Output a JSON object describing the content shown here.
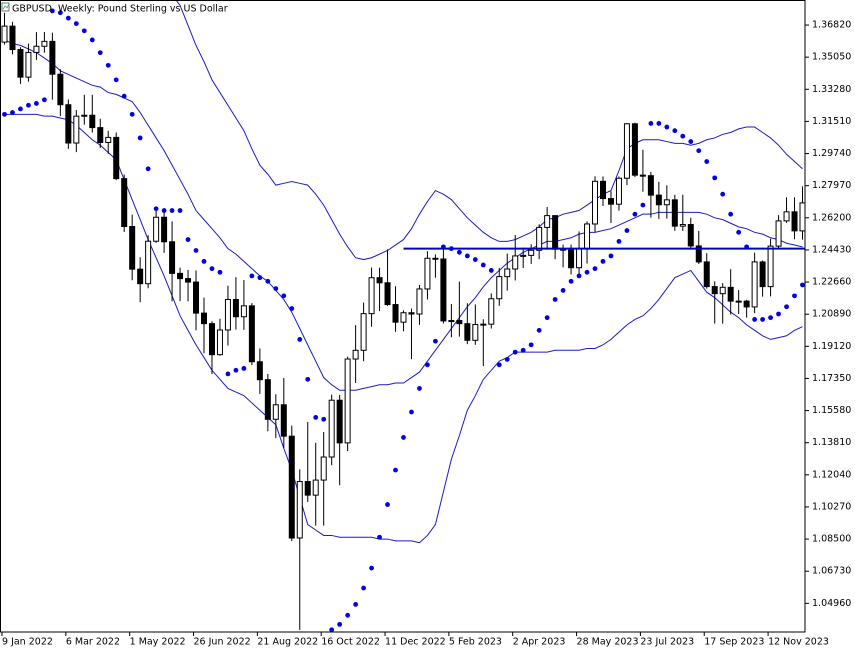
{
  "chart_data": {
    "type": "candlestick",
    "title": "GBPUSD, Weekly:  Pound Sterling vs US Dollar",
    "categories": [
      "9 Jan 2022",
      null,
      null,
      null,
      null,
      null,
      null,
      null,
      "6 Mar 2022",
      null,
      null,
      null,
      null,
      null,
      null,
      null,
      "1 May 2022",
      null,
      null,
      null,
      null,
      null,
      null,
      null,
      "26 Jun 2022",
      null,
      null,
      null,
      null,
      null,
      null,
      null,
      "21 Aug 2022",
      null,
      null,
      null,
      null,
      null,
      null,
      null,
      "16 Oct 2022",
      null,
      null,
      null,
      null,
      null,
      null,
      null,
      "11 Dec 2022",
      null,
      null,
      null,
      null,
      null,
      null,
      null,
      "5 Feb 2023",
      null,
      null,
      null,
      null,
      null,
      null,
      null,
      "2 Apr 2023",
      null,
      null,
      null,
      null,
      null,
      null,
      null,
      "28 May 2023",
      null,
      null,
      null,
      null,
      null,
      null,
      null,
      "23 Jul 2023",
      null,
      null,
      null,
      null,
      null,
      null,
      null,
      "17 Sep 2023",
      null,
      null,
      null,
      null,
      null,
      null,
      null,
      "12 Nov 2023",
      null,
      null,
      null,
      null
    ],
    "open": [
      1.3588,
      1.3676,
      1.3547,
      1.3395,
      1.3531,
      1.3565,
      1.3592,
      1.3411,
      1.3243,
      1.3032,
      1.318,
      1.3185,
      1.3117,
      1.3035,
      1.3063,
      1.2836,
      1.2572,
      1.2337,
      1.2257,
      1.2491,
      1.2623,
      1.2488,
      1.2314,
      1.2285,
      1.2266,
      1.2095,
      1.2037,
      1.1866,
      1.2002,
      1.217,
      1.2075,
      1.2135,
      1.1827,
      1.1728,
      1.151,
      1.159,
      1.1417,
      1.0856,
      1.1167,
      1.1092,
      1.1175,
      1.1302,
      1.1615,
      1.138,
      1.1842,
      1.189,
      1.2092,
      1.229,
      1.2262,
      1.2142,
      1.2045,
      1.2097,
      1.209,
      1.2228,
      1.2397,
      1.2393,
      1.2052,
      1.2054,
      1.2037,
      1.1945,
      1.2032,
      1.2034,
      1.2174,
      1.2296,
      1.2338,
      1.241,
      1.2413,
      1.2441,
      1.2567,
      1.2632,
      1.2447,
      1.2442,
      1.2345,
      1.2448,
      1.2586,
      1.2821,
      1.2726,
      1.2695,
      1.2838,
      1.3138,
      1.2855,
      1.2852,
      1.2745,
      1.2692,
      1.2719,
      1.2574,
      1.2583,
      1.2465,
      1.2377,
      1.2241,
      1.2202,
      1.2237,
      1.2161,
      1.2161,
      1.2129,
      1.2377,
      1.2241,
      1.2464,
      1.2603,
      1.2653,
      1.2548
    ],
    "high": [
      1.3749,
      1.37,
      1.356,
      1.358,
      1.3643,
      1.3644,
      1.364,
      1.3439,
      1.3272,
      1.3214,
      1.3298,
      1.3298,
      1.3166,
      1.3099,
      1.309,
      1.2858,
      1.2638,
      1.2403,
      1.2524,
      1.2666,
      1.2666,
      1.26,
      1.2345,
      1.2333,
      1.233,
      1.218,
      1.205,
      1.2064,
      1.2246,
      1.2293,
      1.2277,
      1.215,
      1.19,
      1.176,
      1.1648,
      1.1738,
      1.1475,
      1.1234,
      1.1495,
      1.138,
      1.144,
      1.1646,
      1.1644,
      1.1855,
      1.2029,
      1.2153,
      1.2346,
      1.2345,
      1.2446,
      1.2243,
      1.211,
      1.212,
      1.225,
      1.2436,
      1.2418,
      1.2448,
      1.2145,
      1.2269,
      1.2149,
      1.2143,
      1.2061,
      1.2204,
      1.2344,
      1.2423,
      1.2525,
      1.2456,
      1.2474,
      1.2584,
      1.268,
      1.2634,
      1.2472,
      1.2472,
      1.2545,
      1.26,
      1.2849,
      1.2848,
      1.2766,
      1.2848,
      1.3142,
      1.3144,
      1.2995,
      1.2873,
      1.2818,
      1.2799,
      1.2747,
      1.2747,
      1.262,
      1.2548,
      1.2425,
      1.227,
      1.226,
      1.2337,
      1.2222,
      1.2168,
      1.2428,
      1.2385,
      1.2505,
      1.2635,
      1.2733,
      1.2733,
      1.2793
    ],
    "low": [
      1.3575,
      1.352,
      1.3358,
      1.337,
      1.349,
      1.353,
      1.3271,
      1.318,
      1.3,
      1.2982,
      1.3133,
      1.309,
      1.3005,
      1.2973,
      1.2827,
      1.2542,
      1.2276,
      1.2155,
      1.2232,
      1.2482,
      1.2427,
      1.216,
      1.2161,
      1.216,
      1.2,
      1.1874,
      1.1759,
      1.186,
      1.1916,
      1.2004,
      1.2003,
      1.1809,
      1.165,
      1.1444,
      1.1406,
      1.1351,
      1.0839,
      1.035,
      1.1055,
      1.0924,
      1.0924,
      1.1257,
      1.1147,
      1.1335,
      1.171,
      1.183,
      1.202,
      1.2106,
      1.2135,
      1.1992,
      1.1995,
      1.1841,
      1.203,
      1.217,
      1.229,
      1.2038,
      1.1962,
      1.1965,
      1.1924,
      1.192,
      1.1803,
      1.201,
      1.2135,
      1.2219,
      1.2275,
      1.2343,
      1.2366,
      1.2392,
      1.2444,
      1.2392,
      1.2347,
      1.2308,
      1.231,
      1.2368,
      1.2541,
      1.2685,
      1.2591,
      1.266,
      1.28,
      1.2845,
      1.2764,
      1.2621,
      1.2614,
      1.2616,
      1.2548,
      1.2548,
      1.2445,
      1.2366,
      1.223,
      1.2037,
      1.2037,
      1.2087,
      1.209,
      1.207,
      1.2095,
      1.2186,
      1.2187,
      1.245,
      1.2592,
      1.2502,
      1.25
    ],
    "close": [
      1.3676,
      1.3547,
      1.3395,
      1.3531,
      1.3565,
      1.3592,
      1.3411,
      1.3243,
      1.3032,
      1.318,
      1.3185,
      1.3117,
      1.3035,
      1.3063,
      1.2836,
      1.2572,
      1.2337,
      1.2257,
      1.2491,
      1.2623,
      1.2488,
      1.2314,
      1.2285,
      1.2266,
      1.2095,
      1.2037,
      1.1866,
      1.2002,
      1.217,
      1.2075,
      1.2135,
      1.1827,
      1.1728,
      1.151,
      1.159,
      1.1417,
      1.0856,
      1.1167,
      1.1092,
      1.1175,
      1.1302,
      1.1615,
      1.138,
      1.1842,
      1.189,
      1.2092,
      1.229,
      1.2262,
      1.2142,
      1.2045,
      1.2097,
      1.209,
      1.2228,
      1.2397,
      1.2393,
      1.2052,
      1.2054,
      1.2037,
      1.1945,
      1.2032,
      1.2034,
      1.2174,
      1.2296,
      1.2338,
      1.241,
      1.2413,
      1.2441,
      1.2567,
      1.2632,
      1.2447,
      1.2442,
      1.2345,
      1.2448,
      1.2586,
      1.2821,
      1.2726,
      1.2695,
      1.2838,
      1.3138,
      1.2855,
      1.2852,
      1.2745,
      1.2692,
      1.2719,
      1.2574,
      1.2583,
      1.2465,
      1.2377,
      1.2241,
      1.2202,
      1.2237,
      1.2161,
      1.2161,
      1.2129,
      1.2377,
      1.2241,
      1.2464,
      1.2603,
      1.2653,
      1.2548,
      1.2702
    ],
    "up_color": "#ffffff",
    "down_color": "#000000",
    "bands": {
      "color": "#1a1acc",
      "upper": [
        1.404,
        1.405,
        1.405,
        1.406,
        1.407,
        1.407,
        1.408,
        1.409,
        1.41,
        1.41,
        1.411,
        1.412,
        1.412,
        1.412,
        1.411,
        1.41,
        1.41,
        1.405,
        1.401,
        1.396,
        1.39,
        1.385,
        1.379,
        1.368,
        1.357,
        1.348,
        1.338,
        1.331,
        1.324,
        1.317,
        1.31,
        1.3,
        1.291,
        1.286,
        1.28,
        1.281,
        1.282,
        1.281,
        1.28,
        1.275,
        1.269,
        1.261,
        1.253,
        1.246,
        1.24,
        1.239,
        1.24,
        1.242,
        1.244,
        1.247,
        1.25,
        1.256,
        1.264,
        1.271,
        1.277,
        1.275,
        1.272,
        1.267,
        1.262,
        1.258,
        1.254,
        1.251,
        1.249,
        1.249,
        1.25,
        1.252,
        1.254,
        1.257,
        1.261,
        1.262,
        1.264,
        1.265,
        1.266,
        1.269,
        1.272,
        1.275,
        1.277,
        1.288,
        1.3,
        1.303,
        1.305,
        1.305,
        1.305,
        1.304,
        1.303,
        1.303,
        1.302,
        1.303,
        1.305,
        1.306,
        1.308,
        1.309,
        1.311,
        1.312,
        1.312,
        1.309,
        1.306,
        1.302,
        1.297,
        1.293,
        1.289
      ],
      "middle": [
        1.36,
        1.358,
        1.357,
        1.355,
        1.353,
        1.35,
        1.347,
        1.343,
        1.341,
        1.339,
        1.337,
        1.335,
        1.334,
        1.331,
        1.33,
        1.328,
        1.326,
        1.32,
        1.313,
        1.306,
        1.299,
        1.291,
        1.283,
        1.275,
        1.266,
        1.261,
        1.256,
        1.251,
        1.245,
        1.242,
        1.238,
        1.234,
        1.23,
        1.227,
        1.222,
        1.217,
        1.21,
        1.201,
        1.192,
        1.183,
        1.174,
        1.17,
        1.167,
        1.167,
        1.167,
        1.168,
        1.169,
        1.17,
        1.17,
        1.171,
        1.171,
        1.174,
        1.177,
        1.183,
        1.189,
        1.195,
        1.201,
        1.207,
        1.213,
        1.218,
        1.224,
        1.229,
        1.233,
        1.237,
        1.24,
        1.243,
        1.245,
        1.247,
        1.249,
        1.249,
        1.25,
        1.251,
        1.253,
        1.254,
        1.254,
        1.255,
        1.256,
        1.258,
        1.26,
        1.262,
        1.264,
        1.264,
        1.265,
        1.265,
        1.265,
        1.265,
        1.265,
        1.265,
        1.264,
        1.262,
        1.261,
        1.259,
        1.257,
        1.256,
        1.254,
        1.253,
        1.251,
        1.25,
        1.248,
        1.247,
        1.246
      ],
      "lower": [
        1.319,
        1.319,
        1.319,
        1.319,
        1.319,
        1.318,
        1.318,
        1.317,
        1.316,
        1.313,
        1.309,
        1.305,
        1.302,
        1.298,
        1.294,
        1.283,
        1.272,
        1.261,
        1.25,
        1.24,
        1.23,
        1.219,
        1.208,
        1.2,
        1.192,
        1.185,
        1.178,
        1.173,
        1.168,
        1.166,
        1.164,
        1.16,
        1.156,
        1.152,
        1.148,
        1.135,
        1.123,
        1.108,
        1.093,
        1.09,
        1.087,
        1.087,
        1.086,
        1.086,
        1.086,
        1.086,
        1.086,
        1.085,
        1.085,
        1.084,
        1.084,
        1.084,
        1.083,
        1.087,
        1.093,
        1.111,
        1.129,
        1.142,
        1.156,
        1.164,
        1.173,
        1.178,
        1.183,
        1.185,
        1.188,
        1.188,
        1.188,
        1.188,
        1.188,
        1.189,
        1.189,
        1.189,
        1.189,
        1.19,
        1.19,
        1.192,
        1.195,
        1.199,
        1.203,
        1.206,
        1.208,
        1.212,
        1.217,
        1.223,
        1.229,
        1.231,
        1.233,
        1.227,
        1.221,
        1.218,
        1.214,
        1.21,
        1.207,
        1.203,
        1.2,
        1.197,
        1.195,
        1.196,
        1.197,
        1.2,
        1.202
      ]
    },
    "sar": {
      "color": "#0000e6",
      "values": [
        1.319,
        1.32,
        1.322,
        1.324,
        1.325,
        1.327,
        1.376,
        1.375,
        1.372,
        1.369,
        1.365,
        1.36,
        1.353,
        1.346,
        1.338,
        1.329,
        1.319,
        1.306,
        1.289,
        1.267,
        1.266,
        1.266,
        1.266,
        1.25,
        1.244,
        1.238,
        1.234,
        1.232,
        1.176,
        1.178,
        1.179,
        1.23,
        1.229,
        1.227,
        1.223,
        1.219,
        1.212,
        1.195,
        1.173,
        1.152,
        1.151,
        1.035,
        1.038,
        1.043,
        1.049,
        1.058,
        1.069,
        1.086,
        1.104,
        1.123,
        1.141,
        1.155,
        1.168,
        1.181,
        1.194,
        1.246,
        1.245,
        1.243,
        1.241,
        1.239,
        1.236,
        1.233,
        1.181,
        1.184,
        1.188,
        1.189,
        1.192,
        1.2,
        1.207,
        1.217,
        1.222,
        1.227,
        1.23,
        1.232,
        1.234,
        1.238,
        1.241,
        1.249,
        1.255,
        1.264,
        1.269,
        1.314,
        1.314,
        1.312,
        1.31,
        1.307,
        1.304,
        1.299,
        1.293,
        1.284,
        1.275,
        1.264,
        1.254,
        1.246,
        1.206,
        1.206,
        1.207,
        1.209,
        1.213,
        1.219,
        1.225
      ]
    },
    "horizontal_line": {
      "value": 1.245,
      "x_from": 50,
      "color": "#0000cd"
    },
    "ylim": [
      1.0338,
      1.382
    ],
    "yticks": [
      {
        "value": 1.3682,
        "label": "1.36820"
      },
      {
        "value": 1.3505,
        "label": "1.35050"
      },
      {
        "value": 1.3328,
        "label": "1.33280"
      },
      {
        "value": 1.3151,
        "label": "1.31510"
      },
      {
        "value": 1.2974,
        "label": "1.29740"
      },
      {
        "value": 1.2797,
        "label": "1.27970"
      },
      {
        "value": 1.262,
        "label": "1.26200"
      },
      {
        "value": 1.2443,
        "label": "1.24430"
      },
      {
        "value": 1.2266,
        "label": "1.22660"
      },
      {
        "value": 1.2089,
        "label": "1.20890"
      },
      {
        "value": 1.1912,
        "label": "1.19120"
      },
      {
        "value": 1.1735,
        "label": "1.17350"
      },
      {
        "value": 1.1558,
        "label": "1.15580"
      },
      {
        "value": 1.1381,
        "label": "1.13810"
      },
      {
        "value": 1.1204,
        "label": "1.12040"
      },
      {
        "value": 1.1027,
        "label": "1.10270"
      },
      {
        "value": 1.085,
        "label": "1.08500"
      },
      {
        "value": 1.0673,
        "label": "1.06730"
      },
      {
        "value": 1.0496,
        "label": "1.04960"
      }
    ]
  }
}
